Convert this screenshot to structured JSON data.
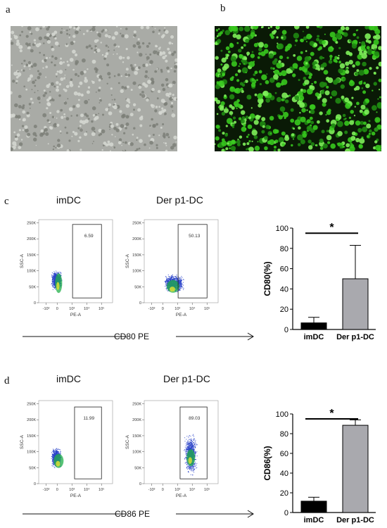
{
  "panels": {
    "a": {
      "label": "a"
    },
    "b": {
      "label": "b"
    },
    "c": {
      "label": "c",
      "flow_left_title": "imDC",
      "flow_right_title": "Der p1-DC",
      "arrow_label": "CD80 PE"
    },
    "d": {
      "label": "d",
      "flow_left_title": "imDC",
      "flow_right_title": "Der p1-DC",
      "arrow_label": "CD86 PE"
    }
  },
  "flow_axes": {
    "y_label": "SSC-A",
    "x_label": "PE-A",
    "y_ticks": [
      "0",
      "50K",
      "100K",
      "150K",
      "200K",
      "250K"
    ],
    "x_ticks": [
      "-10³",
      "0",
      "10³",
      "10⁴",
      "10⁵"
    ]
  },
  "colors": {
    "fluorescence": "#37c81e",
    "bar_imdc": "#000000",
    "bar_derp1": "#a9a9ae",
    "dots": "#2b44c9",
    "dots_dense": "#21b04a",
    "core": "#e5e332"
  },
  "chart_data": [
    {
      "type": "scatter",
      "panel": "c-left",
      "title": "imDC",
      "xlabel": "PE-A",
      "ylabel": "SSC-A",
      "gate_label": "6.59",
      "gate": {
        "x": [
          1100,
          100000
        ],
        "y": [
          15000,
          245000
        ]
      },
      "population_center": {
        "x": 100,
        "y": 70000
      }
    },
    {
      "type": "scatter",
      "panel": "c-right",
      "title": "Der p1-DC",
      "xlabel": "PE-A",
      "ylabel": "SSC-A",
      "gate_label": "50.13",
      "gate": {
        "x": [
          1100,
          100000
        ],
        "y": [
          15000,
          245000
        ]
      },
      "population_center": {
        "x": 700,
        "y": 60000
      }
    },
    {
      "type": "bar",
      "panel": "c-bar",
      "categories": [
        "imDC",
        "Der p1-DC"
      ],
      "values": [
        6.5,
        50
      ],
      "errors": [
        5.5,
        33
      ],
      "ylabel": "CD80(%)",
      "ylim": [
        0,
        100
      ],
      "yticks": [
        "0",
        "20",
        "40",
        "60",
        "80",
        "100"
      ],
      "significance": "*"
    },
    {
      "type": "scatter",
      "panel": "d-left",
      "title": "imDC",
      "xlabel": "PE-A",
      "ylabel": "SSC-A",
      "gate_label": "11.99",
      "gate": {
        "x": [
          1500,
          100000
        ],
        "y": [
          15000,
          240000
        ]
      },
      "population_center": {
        "x": 100,
        "y": 80000
      }
    },
    {
      "type": "scatter",
      "panel": "d-right",
      "title": "Der p1-DC",
      "xlabel": "PE-A",
      "ylabel": "SSC-A",
      "gate_label": "89.03",
      "gate": {
        "x": [
          1500,
          100000
        ],
        "y": [
          15000,
          240000
        ]
      },
      "population_center": {
        "x": 8000,
        "y": 90000
      }
    },
    {
      "type": "bar",
      "panel": "d-bar",
      "categories": [
        "imDC",
        "Der p1-DC"
      ],
      "values": [
        11.5,
        88.5
      ],
      "errors": [
        4,
        5.5
      ],
      "ylabel": "CD86(%)",
      "ylim": [
        0,
        100
      ],
      "yticks": [
        "0",
        "20",
        "40",
        "60",
        "80",
        "100"
      ],
      "significance": "*"
    }
  ]
}
